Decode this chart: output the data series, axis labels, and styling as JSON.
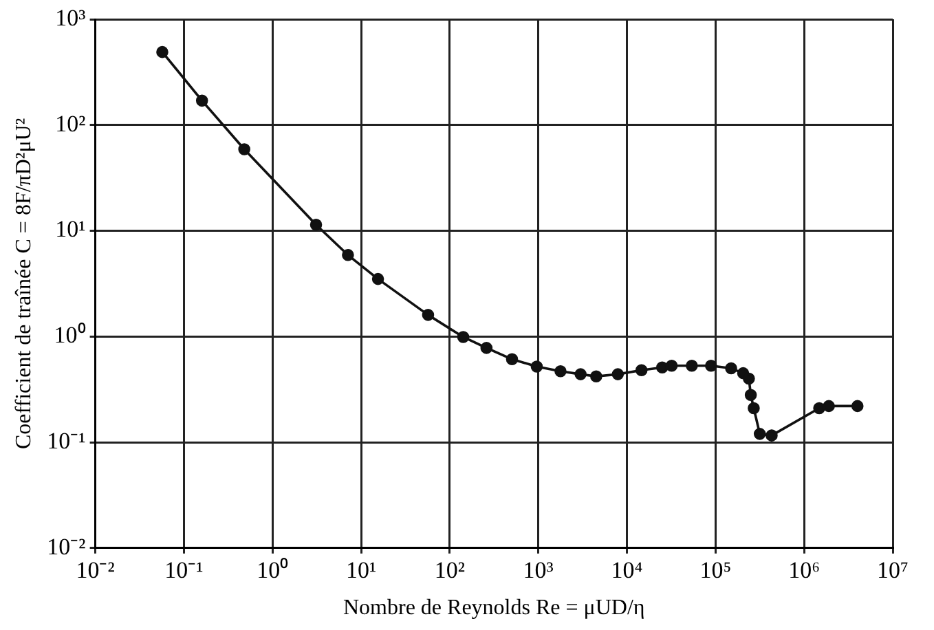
{
  "chart_data": {
    "type": "line",
    "xlabel": "Nombre de Reynolds Re = μUD/η",
    "ylabel": "Coefficient de traînée C = 8F/πD²μU²",
    "log": "xy",
    "grid": true,
    "legend": false,
    "marker": "circle",
    "line_style": "solid",
    "xlim": [
      0.01,
      10000000
    ],
    "ylim": [
      0.01,
      1000
    ],
    "xticks": [
      {
        "value": 0.01,
        "label": "10⁻²"
      },
      {
        "value": 0.1,
        "label": "10⁻¹"
      },
      {
        "value": 1,
        "label": "10⁰"
      },
      {
        "value": 10,
        "label": "10¹"
      },
      {
        "value": 100,
        "label": "10²"
      },
      {
        "value": 1000,
        "label": "10³"
      },
      {
        "value": 10000,
        "label": "10⁴"
      },
      {
        "value": 100000,
        "label": "10⁵"
      },
      {
        "value": 1000000,
        "label": "10⁶"
      },
      {
        "value": 10000000,
        "label": "10⁷"
      }
    ],
    "yticks": [
      {
        "value": 0.01,
        "label": "10⁻²"
      },
      {
        "value": 0.1,
        "label": "10⁻¹"
      },
      {
        "value": 1,
        "label": "10⁰"
      },
      {
        "value": 10,
        "label": "10¹"
      },
      {
        "value": 100,
        "label": "10²"
      },
      {
        "value": 1000,
        "label": "10³"
      }
    ],
    "x": [
      0.057,
      0.16,
      0.48,
      3.1,
      7.1,
      15.5,
      57,
      142,
      260,
      505,
      960,
      1780,
      3000,
      4500,
      7900,
      14600,
      25000,
      32000,
      54000,
      89000,
      150000,
      205000,
      238000,
      250000,
      270000,
      316000,
      430000,
      1480000,
      1900000,
      4000000
    ],
    "series": [
      {
        "color": "#111111",
        "values": [
          490,
          170,
          59,
          11.4,
          5.9,
          3.5,
          1.6,
          0.99,
          0.78,
          0.61,
          0.52,
          0.47,
          0.44,
          0.42,
          0.44,
          0.48,
          0.51,
          0.53,
          0.53,
          0.53,
          0.5,
          0.45,
          0.4,
          0.28,
          0.21,
          0.12,
          0.116,
          0.21,
          0.22,
          0.22
        ]
      }
    ]
  }
}
